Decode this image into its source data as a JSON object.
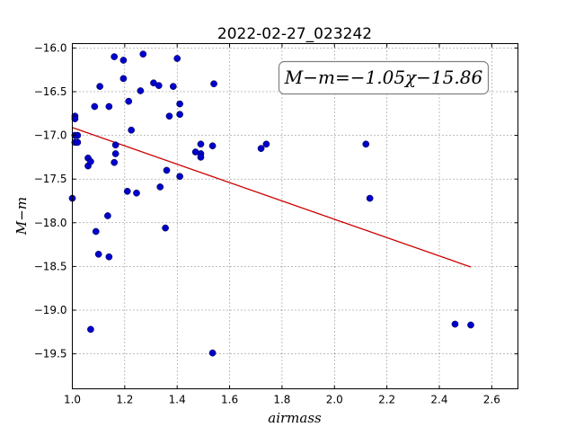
{
  "chart_data": {
    "type": "scatter",
    "title": "2022-02-27_023242",
    "xlabel": "airmass",
    "ylabel": "M−m",
    "xlim": [
      1.0,
      2.7
    ],
    "ylim": [
      -19.9,
      -15.95
    ],
    "y_inverted": true,
    "grid": true,
    "x_ticks": [
      1.0,
      1.2,
      1.4,
      1.6,
      1.8,
      2.0,
      2.2,
      2.4,
      2.6
    ],
    "x_tick_labels": [
      "1.0",
      "1.2",
      "1.4",
      "1.6",
      "1.8",
      "2.0",
      "2.2",
      "2.4",
      "2.6"
    ],
    "y_ticks": [
      -16.0,
      -16.5,
      -17.0,
      -17.5,
      -18.0,
      -18.5,
      -19.0,
      -19.5
    ],
    "y_tick_labels": [
      "−16.0",
      "−16.5",
      "−17.0",
      "−17.5",
      "−18.0",
      "−18.5",
      "−19.0",
      "−19.5"
    ],
    "annotation": "M−m=−1.05χ−15.86",
    "fit": {
      "slope": -1.05,
      "intercept": -15.86,
      "x_range": [
        1.0,
        2.52
      ],
      "color": "#cc0000"
    },
    "marker_color": "#0000cc",
    "points": [
      [
        1.0,
        -17.72
      ],
      [
        1.01,
        -16.78
      ],
      [
        1.01,
        -16.81
      ],
      [
        1.01,
        -17.0
      ],
      [
        1.01,
        -17.08
      ],
      [
        1.02,
        -17.0
      ],
      [
        1.02,
        -17.08
      ],
      [
        1.06,
        -17.26
      ],
      [
        1.06,
        -17.35
      ],
      [
        1.07,
        -17.3
      ],
      [
        1.07,
        -19.22
      ],
      [
        1.085,
        -16.67
      ],
      [
        1.09,
        -18.1
      ],
      [
        1.1,
        -18.36
      ],
      [
        1.105,
        -16.44
      ],
      [
        1.135,
        -17.92
      ],
      [
        1.14,
        -18.39
      ],
      [
        1.14,
        -16.67
      ],
      [
        1.16,
        -17.31
      ],
      [
        1.16,
        -16.1
      ],
      [
        1.165,
        -17.11
      ],
      [
        1.165,
        -17.21
      ],
      [
        1.195,
        -16.35
      ],
      [
        1.195,
        -16.14
      ],
      [
        1.21,
        -17.64
      ],
      [
        1.215,
        -16.61
      ],
      [
        1.225,
        -16.94
      ],
      [
        1.245,
        -17.66
      ],
      [
        1.26,
        -16.49
      ],
      [
        1.27,
        -16.07
      ],
      [
        1.31,
        -16.4
      ],
      [
        1.33,
        -16.43
      ],
      [
        1.335,
        -17.59
      ],
      [
        1.36,
        -17.4
      ],
      [
        1.355,
        -18.06
      ],
      [
        1.37,
        -16.78
      ],
      [
        1.385,
        -16.44
      ],
      [
        1.4,
        -16.12
      ],
      [
        1.41,
        -16.64
      ],
      [
        1.41,
        -16.76
      ],
      [
        1.41,
        -17.47
      ],
      [
        1.47,
        -17.19
      ],
      [
        1.49,
        -17.1
      ],
      [
        1.49,
        -17.21
      ],
      [
        1.49,
        -17.25
      ],
      [
        1.535,
        -17.12
      ],
      [
        1.54,
        -16.41
      ],
      [
        1.535,
        -19.49
      ],
      [
        1.72,
        -17.15
      ],
      [
        1.74,
        -17.1
      ],
      [
        2.12,
        -17.1
      ],
      [
        2.135,
        -17.72
      ],
      [
        2.46,
        -19.16
      ],
      [
        2.52,
        -19.17
      ]
    ]
  }
}
